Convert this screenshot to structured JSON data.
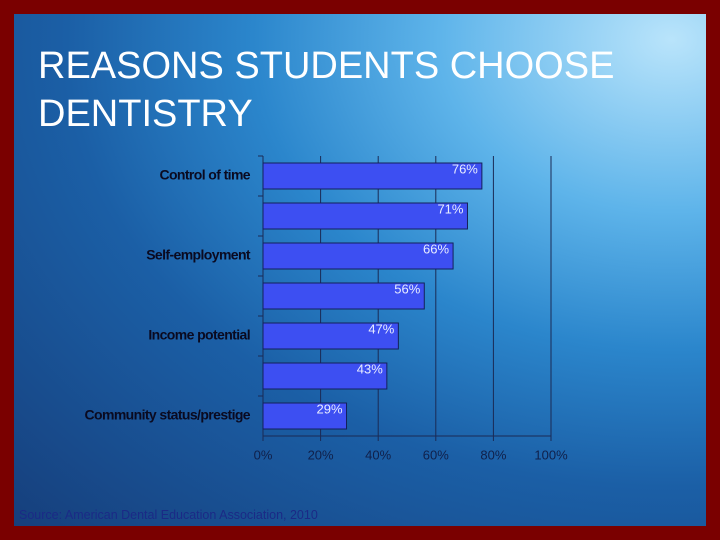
{
  "chart_data": {
    "type": "hbar",
    "title": "REASONS STUDENTS CHOOSE DENTISTRY",
    "categories": [
      "Control of time",
      null,
      "Self-employment",
      null,
      "Income potential",
      null,
      "Community status/prestige"
    ],
    "values": [
      76,
      71,
      66,
      56,
      47,
      43,
      29
    ],
    "value_labels": [
      "76%",
      "71%",
      "66%",
      "56%",
      "47%",
      "43%",
      "29%"
    ],
    "color": "#3d4ff2",
    "xlim": [
      0,
      100
    ],
    "xticks": [
      {
        "value": 0,
        "label": "0%"
      },
      {
        "value": 20,
        "label": "20%"
      },
      {
        "value": 40,
        "label": "40%"
      },
      {
        "value": 60,
        "label": "60%"
      },
      {
        "value": 80,
        "label": "80%"
      },
      {
        "value": 100,
        "label": "100%"
      }
    ],
    "grid": true,
    "source": "Source: American Dental Education Association, 2010"
  }
}
